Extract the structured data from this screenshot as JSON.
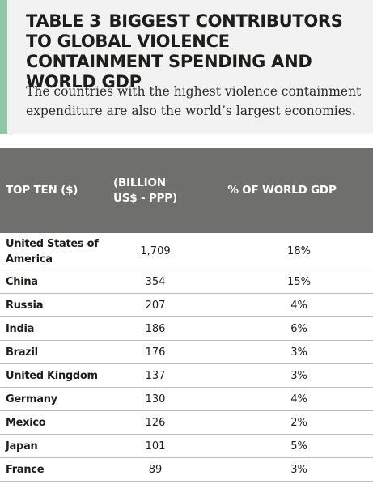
{
  "title": {
    "table_number": "TABLE 3",
    "text": "BIGGEST CONTRIBUTORS TO GLOBAL VIOLENCE CONTAINMENT SPENDING AND WORLD GDP"
  },
  "subtitle": "The countries with the highest violence containment expenditure are also the world’s largest economies.",
  "colors": {
    "accent": "#8dc9a9",
    "header_bg": "#f2f2f2",
    "table_header_bg": "#6f6f6e",
    "row_divider": "#bdbdbd"
  },
  "table": {
    "columns": [
      "TOP TEN ($)",
      "(BILLION US$ - PPP)",
      "% OF WORLD GDP"
    ],
    "rows": [
      {
        "country": "United States of America",
        "spending": "1,709",
        "gdp_share": "18%"
      },
      {
        "country": "China",
        "spending": "354",
        "gdp_share": "15%"
      },
      {
        "country": "Russia",
        "spending": "207",
        "gdp_share": "4%"
      },
      {
        "country": "India",
        "spending": "186",
        "gdp_share": "6%"
      },
      {
        "country": "Brazil",
        "spending": "176",
        "gdp_share": "3%"
      },
      {
        "country": "United Kingdom",
        "spending": "137",
        "gdp_share": "3%"
      },
      {
        "country": "Germany",
        "spending": "130",
        "gdp_share": "4%"
      },
      {
        "country": "Mexico",
        "spending": "126",
        "gdp_share": "2%"
      },
      {
        "country": "Japan",
        "spending": "101",
        "gdp_share": "5%"
      },
      {
        "country": "France",
        "spending": "89",
        "gdp_share": "3%"
      }
    ]
  }
}
